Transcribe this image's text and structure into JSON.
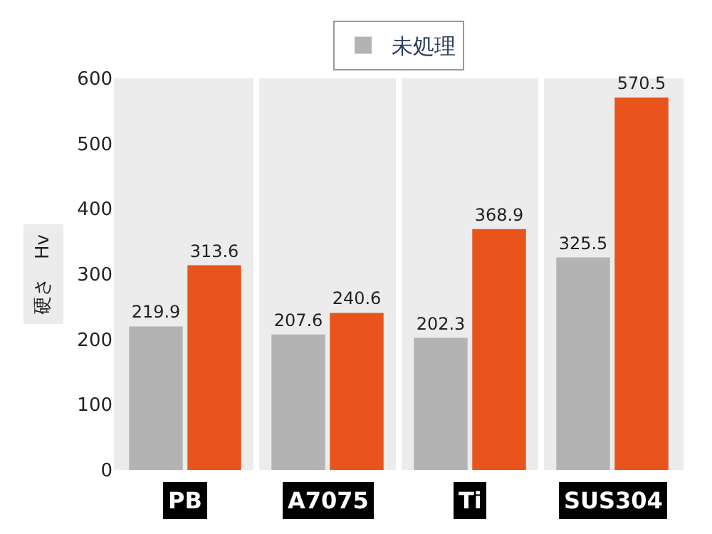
{
  "chart_data": {
    "type": "bar",
    "ylabel": "硬さ　Hv",
    "categories": [
      "PB",
      "A7075",
      "Ti",
      "SUS304"
    ],
    "series": [
      {
        "name": "未処理",
        "color": "#b3b3b3",
        "values": [
          219.9,
          207.6,
          202.3,
          325.5
        ]
      },
      {
        "color": "#e8541c",
        "values": [
          313.6,
          240.6,
          368.9,
          570.5
        ]
      }
    ],
    "ylim": [
      0,
      600
    ],
    "yticks": [
      0,
      100,
      200,
      300,
      400,
      500,
      600
    ],
    "data_labels": true,
    "grid": false,
    "legend": "top"
  }
}
